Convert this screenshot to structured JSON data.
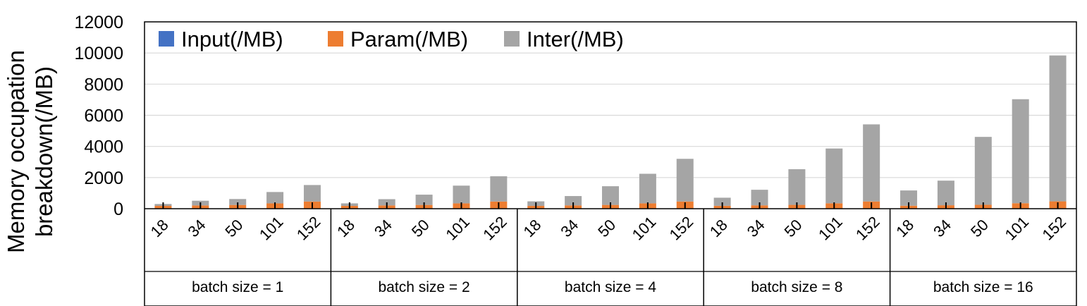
{
  "chart_data": {
    "type": "bar",
    "stacked": true,
    "ylabel_lines": [
      "Memory occupation",
      "breakdown(/MB)"
    ],
    "ylim": [
      0,
      12000
    ],
    "yticks": [
      "0",
      "2000",
      "4000",
      "6000",
      "8000",
      "10000",
      "12000"
    ],
    "grid": true,
    "legend_position": "top-left",
    "groups": [
      {
        "label": "batch size = 1",
        "categories": [
          "18",
          "34",
          "50",
          "101",
          "152"
        ]
      },
      {
        "label": "batch size = 2",
        "categories": [
          "18",
          "34",
          "50",
          "101",
          "152"
        ]
      },
      {
        "label": "batch size = 4",
        "categories": [
          "18",
          "34",
          "50",
          "101",
          "152"
        ]
      },
      {
        "label": "batch size = 8",
        "categories": [
          "18",
          "34",
          "50",
          "101",
          "152"
        ]
      },
      {
        "label": "batch size = 16",
        "categories": [
          "18",
          "34",
          "50",
          "101",
          "152"
        ]
      }
    ],
    "series": [
      {
        "name": "Input(/MB)",
        "color": "#4472C4",
        "values": [
          1,
          1,
          1,
          1,
          1,
          2,
          2,
          2,
          2,
          2,
          3,
          3,
          3,
          3,
          3,
          6,
          6,
          6,
          6,
          6,
          12,
          12,
          12,
          12,
          12
        ]
      },
      {
        "name": "Param(/MB)",
        "color": "#ED7D31",
        "values": [
          180,
          210,
          240,
          340,
          460,
          180,
          210,
          240,
          340,
          460,
          180,
          210,
          240,
          340,
          460,
          180,
          210,
          240,
          340,
          460,
          180,
          210,
          240,
          340,
          460
        ]
      },
      {
        "name": "Inter(/MB)",
        "color": "#A5A5A5",
        "values": [
          120,
          300,
          380,
          730,
          1060,
          160,
          400,
          660,
          1140,
          1620,
          290,
          600,
          1200,
          1900,
          2740,
          520,
          1000,
          2290,
          3520,
          4950,
          980,
          1580,
          4360,
          6680,
          9370
        ]
      }
    ]
  }
}
